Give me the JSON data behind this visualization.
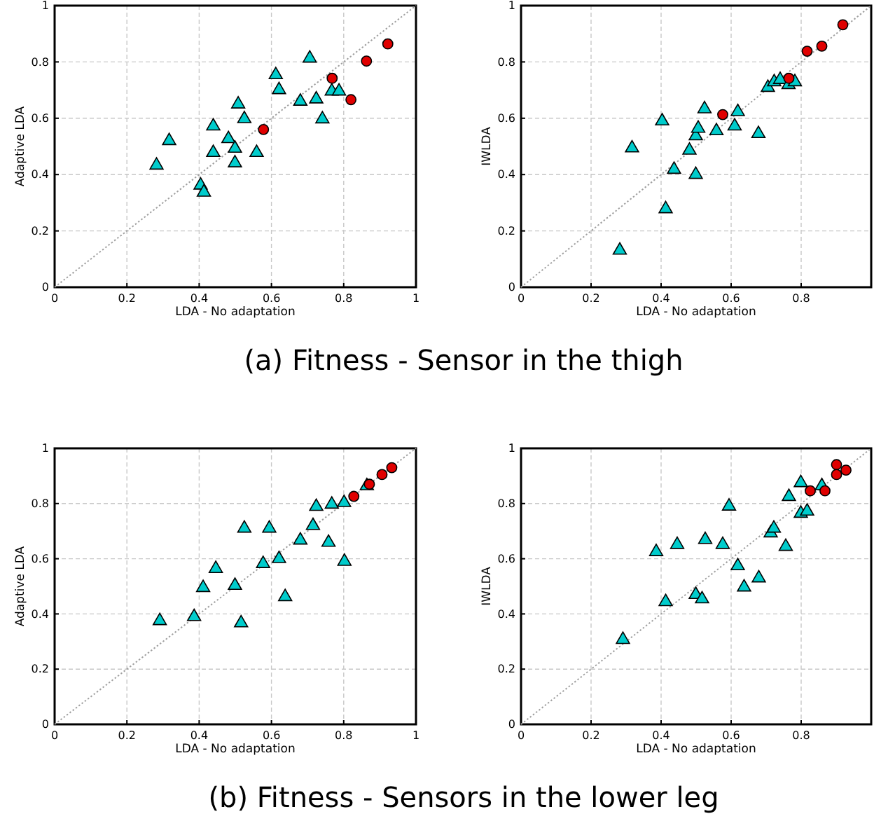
{
  "chart_data": [
    {
      "type": "scatter",
      "title": "(a) Fitness - Sensor in the thigh",
      "xlabel": "LDA - No adaptation",
      "ylabel": "Adaptive LDA",
      "xlim": [
        0,
        1
      ],
      "ylim": [
        0,
        1
      ],
      "xticks": [
        0,
        0.2,
        0.4,
        0.6,
        0.8,
        1
      ],
      "yticks": [
        0,
        0.2,
        0.4,
        0.6,
        0.8,
        1
      ],
      "grid": true,
      "series": [
        {
          "type": "line",
          "color": "#a0a0a0",
          "line_style": "dotted",
          "x": [
            0,
            1
          ],
          "values": [
            0,
            1
          ]
        },
        {
          "color": "#00cccc",
          "marker": "triangle",
          "x": [
            0.282,
            0.317,
            0.404,
            0.413,
            0.439,
            0.439,
            0.481,
            0.499,
            0.499,
            0.508,
            0.525,
            0.559,
            0.612,
            0.621,
            0.68,
            0.706,
            0.724,
            0.741,
            0.767,
            0.787
          ],
          "values": [
            0.433,
            0.52,
            0.362,
            0.337,
            0.572,
            0.478,
            0.527,
            0.493,
            0.441,
            0.65,
            0.598,
            0.478,
            0.754,
            0.701,
            0.66,
            0.813,
            0.668,
            0.597,
            0.696,
            0.696
          ]
        },
        {
          "color": "#e00000",
          "marker": "circle",
          "x": [
            0.578,
            0.768,
            0.863,
            0.82,
            0.922
          ],
          "values": [
            0.56,
            0.742,
            0.803,
            0.666,
            0.864
          ]
        }
      ]
    },
    {
      "type": "scatter",
      "xlabel": "LDA - No adaptation",
      "ylabel": "IWLDA",
      "xlim": [
        0,
        1
      ],
      "ylim": [
        0,
        1
      ],
      "xticks": [
        0,
        0.2,
        0.4,
        0.6,
        0.8,
        {
          "value": 1,
          "label": null
        }
      ],
      "yticks": [
        0,
        0.2,
        0.4,
        0.6,
        0.8,
        1
      ],
      "grid": true,
      "series": [
        {
          "type": "line",
          "color": "#a0a0a0",
          "line_style": "dotted",
          "x": [
            0,
            1
          ],
          "values": [
            0,
            1
          ]
        },
        {
          "color": "#00cccc",
          "marker": "triangle",
          "x": [
            0.282,
            0.317,
            0.403,
            0.413,
            0.437,
            0.481,
            0.499,
            0.499,
            0.506,
            0.524,
            0.558,
            0.61,
            0.619,
            0.678,
            0.705,
            0.723,
            0.74,
            0.764,
            0.782
          ],
          "values": [
            0.131,
            0.494,
            0.59,
            0.278,
            0.418,
            0.486,
            0.4,
            0.537,
            0.564,
            0.633,
            0.555,
            0.572,
            0.623,
            0.545,
            0.709,
            0.729,
            0.737,
            0.719,
            0.729
          ]
        },
        {
          "color": "#e00000",
          "marker": "circle",
          "x": [
            0.576,
            0.765,
            0.817,
            0.859,
            0.919
          ],
          "values": [
            0.613,
            0.742,
            0.838,
            0.856,
            0.932
          ]
        }
      ]
    },
    {
      "type": "scatter",
      "title": "(b) Fitness - Sensors in the lower leg",
      "xlabel": "LDA - No adaptation",
      "ylabel": "Adaptive LDA",
      "xlim": [
        0,
        1
      ],
      "ylim": [
        0,
        1
      ],
      "xticks": [
        0,
        0.2,
        0.4,
        0.6,
        0.8,
        1
      ],
      "yticks": [
        0,
        0.2,
        0.4,
        0.6,
        0.8,
        1
      ],
      "grid": true,
      "series": [
        {
          "type": "line",
          "color": "#a0a0a0",
          "line_style": "dotted",
          "x": [
            0,
            1
          ],
          "values": [
            0,
            1
          ]
        },
        {
          "color": "#00cccc",
          "marker": "triangle",
          "x": [
            0.291,
            0.386,
            0.411,
            0.446,
            0.499,
            0.516,
            0.525,
            0.577,
            0.594,
            0.621,
            0.638,
            0.68,
            0.715,
            0.724,
            0.758,
            0.767,
            0.801,
            0.802,
            0.864
          ],
          "values": [
            0.375,
            0.39,
            0.495,
            0.564,
            0.503,
            0.367,
            0.71,
            0.582,
            0.71,
            0.6,
            0.462,
            0.667,
            0.72,
            0.789,
            0.659,
            0.797,
            0.803,
            0.59,
            0.864
          ]
        },
        {
          "color": "#e00000",
          "marker": "circle",
          "x": [
            0.828,
            0.871,
            0.906,
            0.933
          ],
          "values": [
            0.826,
            0.87,
            0.905,
            0.93
          ]
        }
      ]
    },
    {
      "type": "scatter",
      "xlabel": "LDA - No adaptation",
      "ylabel": "IWLDA",
      "xlim": [
        0,
        1
      ],
      "ylim": [
        0,
        1
      ],
      "xticks": [
        0,
        0.2,
        0.4,
        0.6,
        0.8,
        {
          "value": 1,
          "label": null
        }
      ],
      "yticks": [
        0,
        0.2,
        0.4,
        0.6,
        0.8,
        1
      ],
      "grid": true,
      "series": [
        {
          "type": "line",
          "color": "#a0a0a0",
          "line_style": "dotted",
          "x": [
            0,
            1
          ],
          "values": [
            0,
            1
          ]
        },
        {
          "color": "#00cccc",
          "marker": "triangle",
          "x": [
            0.291,
            0.386,
            0.413,
            0.446,
            0.499,
            0.517,
            0.526,
            0.576,
            0.594,
            0.619,
            0.637,
            0.679,
            0.713,
            0.722,
            0.756,
            0.765,
            0.799,
            0.799,
            0.817,
            0.859
          ],
          "values": [
            0.307,
            0.625,
            0.444,
            0.651,
            0.47,
            0.454,
            0.669,
            0.651,
            0.79,
            0.574,
            0.497,
            0.53,
            0.693,
            0.71,
            0.644,
            0.825,
            0.875,
            0.764,
            0.772,
            0.864
          ]
        },
        {
          "color": "#e00000",
          "marker": "circle",
          "x": [
            0.826,
            0.868,
            0.901,
            0.901,
            0.928
          ],
          "values": [
            0.846,
            0.846,
            0.941,
            0.905,
            0.921
          ]
        }
      ]
    }
  ]
}
